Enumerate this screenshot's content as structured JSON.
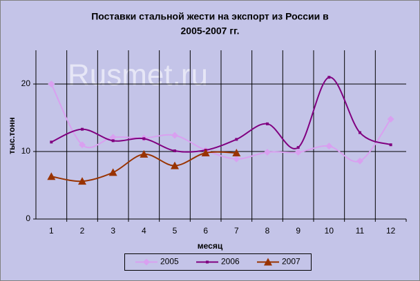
{
  "chart_data": {
    "type": "line",
    "title": [
      "Поставки стальной жести на экспорт из России в",
      "2005-2007 гг."
    ],
    "watermark": "Rusmet.ru",
    "x_label": "месяц",
    "y_label": "тыс.тонн",
    "categories": [
      "1",
      "2",
      "3",
      "4",
      "5",
      "6",
      "7",
      "8",
      "9",
      "10",
      "11",
      "12"
    ],
    "series": [
      {
        "name": "2005",
        "color": "#d9a0f0",
        "marker": "diamond",
        "values": [
          20.0,
          11.0,
          12.1,
          12.0,
          12.4,
          10.2,
          8.9,
          9.9,
          9.9,
          10.8,
          8.6,
          14.8
        ]
      },
      {
        "name": "2006",
        "color": "#800080",
        "marker": "square",
        "values": [
          11.4,
          13.3,
          11.6,
          11.9,
          10.1,
          10.2,
          11.8,
          14.1,
          10.6,
          21.0,
          12.8,
          11.0
        ]
      },
      {
        "name": "2007",
        "color": "#993300",
        "marker": "triangle",
        "values": [
          6.3,
          5.6,
          6.9,
          9.6,
          7.9,
          9.8,
          9.8,
          null,
          null,
          null,
          null,
          null
        ]
      }
    ],
    "ylim": [
      0,
      25
    ],
    "yticks": [
      0,
      10,
      20
    ],
    "grid": true,
    "smooth": true,
    "legend": "bottom"
  }
}
